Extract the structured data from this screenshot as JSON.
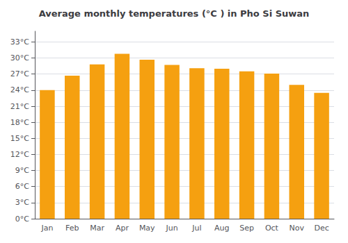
{
  "chart_data": {
    "type": "bar",
    "title": "Average monthly temperatures (°C ) in Pho Si Suwan",
    "categories": [
      "Jan",
      "Feb",
      "Mar",
      "Apr",
      "May",
      "Jun",
      "Jul",
      "Aug",
      "Sep",
      "Oct",
      "Nov",
      "Dec"
    ],
    "values": [
      24.0,
      26.7,
      28.8,
      30.8,
      29.7,
      28.7,
      28.1,
      28.0,
      27.5,
      27.1,
      25.0,
      23.5
    ],
    "color": "#F5A010",
    "ylim": [
      0,
      35
    ],
    "yticks": [
      {
        "value": 0,
        "label": "0°C"
      },
      {
        "value": 3,
        "label": "3°C"
      },
      {
        "value": 6,
        "label": "6°C"
      },
      {
        "value": 9,
        "label": "9°C"
      },
      {
        "value": 12,
        "label": "12°C"
      },
      {
        "value": 15,
        "label": "15°C"
      },
      {
        "value": 18,
        "label": "18°C"
      },
      {
        "value": 21,
        "label": "21°C"
      },
      {
        "value": 24,
        "label": "24°C"
      },
      {
        "value": 27,
        "label": "27°C"
      },
      {
        "value": 30,
        "label": "30°C"
      },
      {
        "value": 33,
        "label": "33°C"
      }
    ],
    "grid": true
  }
}
